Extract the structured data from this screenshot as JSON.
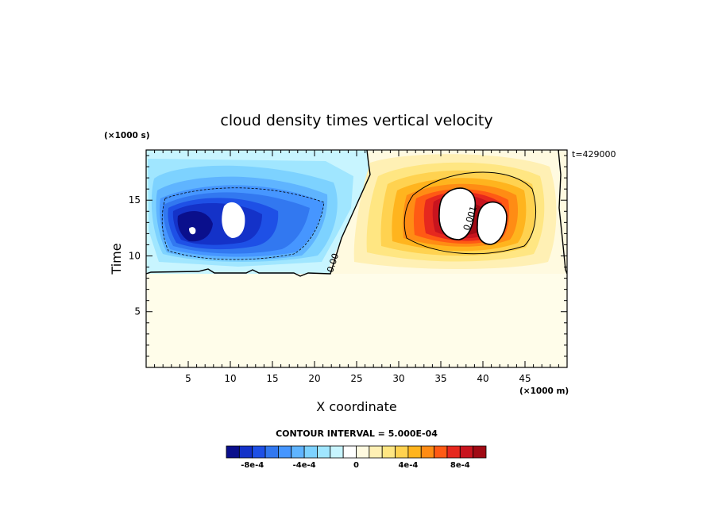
{
  "chart_data": {
    "type": "heatmap",
    "title": "cloud density times vertical velocity",
    "xlabel": "X coordinate",
    "ylabel": "Time",
    "x_unit_label": "(×1000 m)",
    "y_unit_label": "(×1000 s)",
    "time_annotation": "t=429000",
    "xlim": [
      0,
      50
    ],
    "ylim": [
      0,
      19.5
    ],
    "x_ticks": [
      5,
      10,
      15,
      20,
      25,
      30,
      35,
      40,
      45
    ],
    "x_tick_labels": [
      "5",
      "10",
      "15",
      "20",
      "25",
      "30",
      "35",
      "40",
      "45"
    ],
    "y_ticks": [
      5,
      10,
      15
    ],
    "y_tick_labels": [
      "5",
      "10",
      "15"
    ],
    "contour_labels": [
      {
        "text": "0.00",
        "x": 22.5,
        "y": 9.3
      },
      {
        "text": "0.001",
        "x": 38.8,
        "y": 13.3
      }
    ],
    "contour_interval_text": "CONTOUR INTERVAL = 5.000E-04",
    "colorbar": {
      "colors": [
        "#0a0f8c",
        "#1432c8",
        "#1e50e6",
        "#3278f0",
        "#4696ff",
        "#5fb4ff",
        "#7dd2ff",
        "#a0e6ff",
        "#c8f5ff",
        "#ffffff",
        "#fffae0",
        "#fff0b4",
        "#ffe682",
        "#ffd250",
        "#ffb41e",
        "#ff8c14",
        "#ff5a14",
        "#e6281e",
        "#c8141e",
        "#a00a14"
      ],
      "tick_labels": [
        "-8e-4",
        "-4e-4",
        "0",
        "4e-4",
        "8e-4"
      ]
    }
  }
}
